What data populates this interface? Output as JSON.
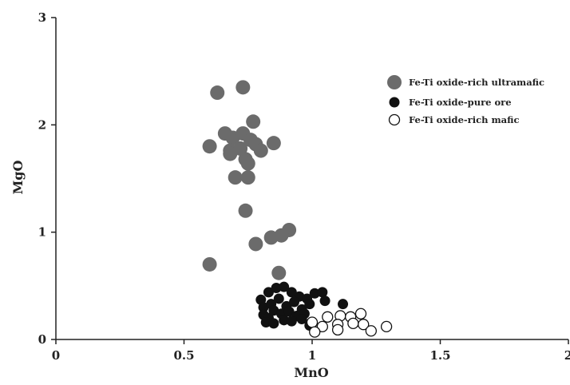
{
  "chart_data": {
    "type": "scatter",
    "title": "",
    "xlabel": "MnO",
    "ylabel": "MgO",
    "xlim": [
      0,
      2
    ],
    "ylim": [
      0,
      3
    ],
    "xticks": [
      0,
      0.5,
      1,
      1.5,
      2
    ],
    "xtick_labels": [
      "0",
      "0.5",
      "1",
      "1.5",
      "2"
    ],
    "yticks": [
      0,
      1,
      2,
      3
    ],
    "ytick_labels": [
      "0",
      "1",
      "2",
      "3"
    ],
    "grid": false,
    "legend_position": "top-right",
    "series": [
      {
        "name": "Fe-Ti oxide-rich ultramafic",
        "marker": "filled-circle-large",
        "color": "#6b6b6b",
        "points": [
          [
            0.63,
            2.3
          ],
          [
            0.73,
            2.35
          ],
          [
            0.77,
            2.03
          ],
          [
            0.6,
            1.8
          ],
          [
            0.66,
            1.92
          ],
          [
            0.69,
            1.88
          ],
          [
            0.73,
            1.92
          ],
          [
            0.76,
            1.86
          ],
          [
            0.68,
            1.76
          ],
          [
            0.72,
            1.78
          ],
          [
            0.78,
            1.82
          ],
          [
            0.8,
            1.76
          ],
          [
            0.85,
            1.83
          ],
          [
            0.68,
            1.73
          ],
          [
            0.74,
            1.68
          ],
          [
            0.75,
            1.64
          ],
          [
            0.7,
            1.51
          ],
          [
            0.75,
            1.51
          ],
          [
            0.74,
            1.2
          ],
          [
            0.91,
            1.02
          ],
          [
            0.88,
            0.97
          ],
          [
            0.84,
            0.95
          ],
          [
            0.78,
            0.89
          ],
          [
            0.6,
            0.7
          ],
          [
            0.87,
            0.62
          ]
        ]
      },
      {
        "name": "Fe-Ti oxide-pure ore",
        "marker": "filled-circle-small",
        "color": "#111111",
        "points": [
          [
            0.8,
            0.37
          ],
          [
            0.83,
            0.44
          ],
          [
            0.86,
            0.48
          ],
          [
            0.89,
            0.49
          ],
          [
            0.92,
            0.44
          ],
          [
            0.95,
            0.4
          ],
          [
            0.98,
            0.38
          ],
          [
            1.01,
            0.43
          ],
          [
            1.04,
            0.44
          ],
          [
            1.12,
            0.33
          ],
          [
            0.81,
            0.3
          ],
          [
            0.84,
            0.33
          ],
          [
            0.87,
            0.38
          ],
          [
            0.9,
            0.31
          ],
          [
            0.93,
            0.35
          ],
          [
            0.96,
            0.28
          ],
          [
            0.99,
            0.33
          ],
          [
            1.05,
            0.36
          ],
          [
            0.81,
            0.23
          ],
          [
            0.83,
            0.2
          ],
          [
            0.85,
            0.27
          ],
          [
            0.88,
            0.24
          ],
          [
            0.91,
            0.26
          ],
          [
            0.94,
            0.22
          ],
          [
            0.97,
            0.24
          ],
          [
            0.82,
            0.16
          ],
          [
            0.85,
            0.15
          ],
          [
            0.89,
            0.18
          ],
          [
            0.92,
            0.17
          ],
          [
            0.96,
            0.19
          ],
          [
            0.99,
            0.13
          ]
        ]
      },
      {
        "name": "Fe-Ti oxide-rich mafic",
        "marker": "open-circle",
        "color": "#111111",
        "points": [
          [
            1.06,
            0.21
          ],
          [
            1.11,
            0.22
          ],
          [
            1.15,
            0.21
          ],
          [
            1.19,
            0.24
          ],
          [
            1.0,
            0.16
          ],
          [
            1.1,
            0.14
          ],
          [
            1.16,
            0.15
          ],
          [
            1.2,
            0.14
          ],
          [
            1.04,
            0.12
          ],
          [
            1.29,
            0.12
          ],
          [
            1.01,
            0.07
          ],
          [
            1.1,
            0.09
          ],
          [
            1.23,
            0.08
          ]
        ]
      }
    ]
  }
}
